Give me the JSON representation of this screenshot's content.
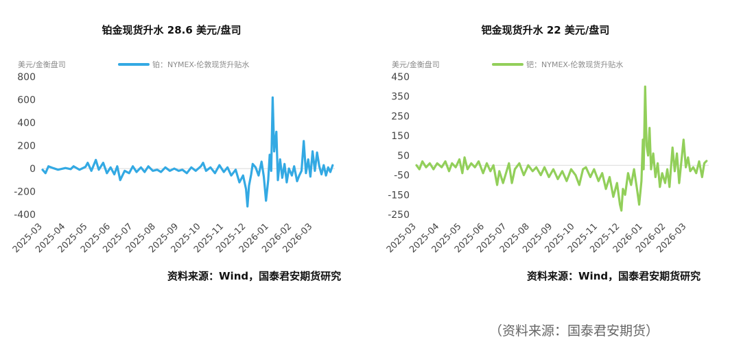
{
  "footer_source": "（资料来源：国泰君安期货）",
  "charts": [
    {
      "title": "铂金现货升水 28.6 美元/盘司",
      "unit": "美元/金衡盘司",
      "legend": "铂：NYMEX-伦敦现货升贴水",
      "source": "资料来源：Wind，国泰君安期货研究",
      "color": "#33a9e3"
    },
    {
      "title": "钯金现货升水 22 美元/盘司",
      "unit": "美元/金衡盘司",
      "legend": "钯：NYMEX-伦敦现货升贴水",
      "source": "资料来源：Wind，国泰君安期货研究",
      "color": "#92cf5a"
    }
  ],
  "chart_data": [
    {
      "type": "line",
      "title": "铂金现货升水 28.6 美元/盘司",
      "ylabel": "美元/金衡盘司",
      "ylim": [
        -400,
        800
      ],
      "yticks": [
        800,
        600,
        400,
        200,
        0,
        -200,
        -400
      ],
      "xlim": [
        "2025-03-01",
        "2026-03-31"
      ],
      "xticks": [
        "2025-03",
        "2025-04",
        "2025-05",
        "2025-06",
        "2025-07",
        "2025-08",
        "2025-09",
        "2025-10",
        "2025-11",
        "2025-12",
        "2026-01",
        "2026-02",
        "2026-03"
      ],
      "grid": false,
      "series": [
        {
          "name": "铂：NYMEX-伦敦现货升贴水",
          "points": [
            [
              "2025-03-01",
              -10
            ],
            [
              "2025-03-05",
              -40
            ],
            [
              "2025-03-09",
              20
            ],
            [
              "2025-03-15",
              5
            ],
            [
              "2025-03-22",
              -10
            ],
            [
              "2025-04-01",
              5
            ],
            [
              "2025-04-08",
              -5
            ],
            [
              "2025-04-12",
              20
            ],
            [
              "2025-04-20",
              -10
            ],
            [
              "2025-04-28",
              15
            ],
            [
              "2025-05-01",
              50
            ],
            [
              "2025-05-06",
              -20
            ],
            [
              "2025-05-12",
              75
            ],
            [
              "2025-05-16",
              -10
            ],
            [
              "2025-05-22",
              50
            ],
            [
              "2025-05-27",
              -40
            ],
            [
              "2025-06-01",
              10
            ],
            [
              "2025-06-06",
              -50
            ],
            [
              "2025-06-10",
              20
            ],
            [
              "2025-06-14",
              -100
            ],
            [
              "2025-06-20",
              -20
            ],
            [
              "2025-06-26",
              -40
            ],
            [
              "2025-07-01",
              20
            ],
            [
              "2025-07-06",
              -30
            ],
            [
              "2025-07-12",
              10
            ],
            [
              "2025-07-17",
              -30
            ],
            [
              "2025-07-22",
              20
            ],
            [
              "2025-07-28",
              -20
            ],
            [
              "2025-08-03",
              -10
            ],
            [
              "2025-08-08",
              -30
            ],
            [
              "2025-08-14",
              10
            ],
            [
              "2025-08-20",
              -20
            ],
            [
              "2025-08-26",
              0
            ],
            [
              "2025-09-01",
              -20
            ],
            [
              "2025-09-06",
              -10
            ],
            [
              "2025-09-12",
              -40
            ],
            [
              "2025-09-18",
              10
            ],
            [
              "2025-09-24",
              -20
            ],
            [
              "2025-10-01",
              20
            ],
            [
              "2025-10-04",
              50
            ],
            [
              "2025-10-08",
              -20
            ],
            [
              "2025-10-14",
              10
            ],
            [
              "2025-10-20",
              -40
            ],
            [
              "2025-10-26",
              30
            ],
            [
              "2025-11-01",
              -30
            ],
            [
              "2025-11-06",
              10
            ],
            [
              "2025-11-11",
              -60
            ],
            [
              "2025-11-17",
              -10
            ],
            [
              "2025-11-22",
              -120
            ],
            [
              "2025-11-27",
              -60
            ],
            [
              "2025-12-01",
              -180
            ],
            [
              "2025-12-03",
              -330
            ],
            [
              "2025-12-05",
              -150
            ],
            [
              "2025-12-08",
              -50
            ],
            [
              "2025-12-10",
              40
            ],
            [
              "2025-12-14",
              10
            ],
            [
              "2025-12-18",
              -60
            ],
            [
              "2025-12-22",
              60
            ],
            [
              "2025-12-25",
              -70
            ],
            [
              "2025-12-28",
              -280
            ],
            [
              "2025-12-31",
              -100
            ],
            [
              "2026-01-02",
              120
            ],
            [
              "2026-01-04",
              -20
            ],
            [
              "2026-01-06",
              620
            ],
            [
              "2026-01-08",
              150
            ],
            [
              "2026-01-11",
              320
            ],
            [
              "2026-01-13",
              -100
            ],
            [
              "2026-01-16",
              80
            ],
            [
              "2026-01-19",
              -80
            ],
            [
              "2026-01-22",
              40
            ],
            [
              "2026-01-25",
              -120
            ],
            [
              "2026-01-28",
              0
            ],
            [
              "2026-02-01",
              -60
            ],
            [
              "2026-02-04",
              20
            ],
            [
              "2026-02-08",
              -110
            ],
            [
              "2026-02-11",
              -60
            ],
            [
              "2026-02-14",
              -20
            ],
            [
              "2026-02-17",
              240
            ],
            [
              "2026-02-20",
              -40
            ],
            [
              "2026-02-23",
              80
            ],
            [
              "2026-02-26",
              -70
            ],
            [
              "2026-03-01",
              150
            ],
            [
              "2026-03-04",
              -20
            ],
            [
              "2026-03-07",
              140
            ],
            [
              "2026-03-10",
              20
            ],
            [
              "2026-03-13",
              -50
            ],
            [
              "2026-03-16",
              30
            ],
            [
              "2026-03-19",
              -60
            ],
            [
              "2026-03-22",
              10
            ],
            [
              "2026-03-25",
              -30
            ],
            [
              "2026-03-28",
              28.6
            ]
          ]
        }
      ]
    },
    {
      "type": "line",
      "title": "钯金现货升水 22 美元/盘司",
      "ylabel": "美元/金衡盘司",
      "ylim": [
        -250,
        450
      ],
      "yticks": [
        450,
        350,
        250,
        150,
        50,
        -50,
        -150,
        -250
      ],
      "xlim": [
        "2025-03-01",
        "2026-03-31"
      ],
      "xticks": [
        "2025-03",
        "2025-04",
        "2025-05",
        "2025-06",
        "2025-07",
        "2025-08",
        "2025-09",
        "2025-10",
        "2025-11",
        "2025-12",
        "2026-01",
        "2026-02",
        "2026-03"
      ],
      "grid": false,
      "series": [
        {
          "name": "钯：NYMEX-伦敦现货升贴水",
          "points": [
            [
              "2025-03-01",
              0
            ],
            [
              "2025-03-05",
              -20
            ],
            [
              "2025-03-09",
              20
            ],
            [
              "2025-03-14",
              -10
            ],
            [
              "2025-03-19",
              10
            ],
            [
              "2025-03-24",
              -20
            ],
            [
              "2025-03-29",
              10
            ],
            [
              "2025-04-04",
              -10
            ],
            [
              "2025-04-09",
              20
            ],
            [
              "2025-04-14",
              -30
            ],
            [
              "2025-04-18",
              10
            ],
            [
              "2025-04-23",
              -10
            ],
            [
              "2025-04-28",
              30
            ],
            [
              "2025-05-02",
              -40
            ],
            [
              "2025-05-05",
              40
            ],
            [
              "2025-05-09",
              -20
            ],
            [
              "2025-05-14",
              10
            ],
            [
              "2025-05-19",
              -10
            ],
            [
              "2025-05-24",
              20
            ],
            [
              "2025-05-30",
              -40
            ],
            [
              "2025-06-04",
              10
            ],
            [
              "2025-06-09",
              -30
            ],
            [
              "2025-06-13",
              0
            ],
            [
              "2025-06-18",
              -100
            ],
            [
              "2025-06-21",
              -30
            ],
            [
              "2025-06-26",
              -90
            ],
            [
              "2025-06-30",
              -40
            ],
            [
              "2025-07-04",
              10
            ],
            [
              "2025-07-08",
              -90
            ],
            [
              "2025-07-12",
              -20
            ],
            [
              "2025-07-18",
              10
            ],
            [
              "2025-07-24",
              -50
            ],
            [
              "2025-07-30",
              0
            ],
            [
              "2025-08-05",
              -30
            ],
            [
              "2025-08-10",
              -10
            ],
            [
              "2025-08-16",
              -50
            ],
            [
              "2025-08-21",
              -10
            ],
            [
              "2025-08-27",
              -60
            ],
            [
              "2025-09-02",
              -20
            ],
            [
              "2025-09-08",
              -70
            ],
            [
              "2025-09-14",
              -30
            ],
            [
              "2025-09-20",
              -80
            ],
            [
              "2025-09-26",
              -20
            ],
            [
              "2025-10-02",
              -50
            ],
            [
              "2025-10-07",
              -100
            ],
            [
              "2025-10-12",
              -20
            ],
            [
              "2025-10-16",
              -10
            ],
            [
              "2025-10-22",
              -60
            ],
            [
              "2025-10-27",
              -20
            ],
            [
              "2025-11-02",
              -80
            ],
            [
              "2025-11-07",
              -40
            ],
            [
              "2025-11-12",
              -120
            ],
            [
              "2025-11-17",
              -60
            ],
            [
              "2025-11-22",
              -160
            ],
            [
              "2025-11-27",
              -90
            ],
            [
              "2025-12-01",
              -200
            ],
            [
              "2025-12-03",
              -230
            ],
            [
              "2025-12-05",
              -120
            ],
            [
              "2025-12-08",
              -150
            ],
            [
              "2025-12-12",
              -40
            ],
            [
              "2025-12-16",
              -100
            ],
            [
              "2025-12-20",
              -20
            ],
            [
              "2025-12-24",
              -120
            ],
            [
              "2025-12-27",
              -200
            ],
            [
              "2025-12-30",
              -80
            ],
            [
              "2026-01-01",
              130
            ],
            [
              "2026-01-02",
              -20
            ],
            [
              "2026-01-04",
              400
            ],
            [
              "2026-01-06",
              100
            ],
            [
              "2026-01-08",
              50
            ],
            [
              "2026-01-10",
              190
            ],
            [
              "2026-01-12",
              -20
            ],
            [
              "2026-01-15",
              60
            ],
            [
              "2026-01-18",
              -60
            ],
            [
              "2026-01-21",
              10
            ],
            [
              "2026-01-24",
              -110
            ],
            [
              "2026-01-27",
              -40
            ],
            [
              "2026-01-31",
              -90
            ],
            [
              "2026-02-03",
              -20
            ],
            [
              "2026-02-06",
              -110
            ],
            [
              "2026-02-10",
              90
            ],
            [
              "2026-02-13",
              -30
            ],
            [
              "2026-02-16",
              60
            ],
            [
              "2026-02-19",
              -90
            ],
            [
              "2026-02-22",
              20
            ],
            [
              "2026-02-25",
              130
            ],
            [
              "2026-02-28",
              -10
            ],
            [
              "2026-03-03",
              40
            ],
            [
              "2026-03-06",
              -30
            ],
            [
              "2026-03-10",
              -10
            ],
            [
              "2026-03-14",
              -40
            ],
            [
              "2026-03-18",
              20
            ],
            [
              "2026-03-22",
              -60
            ],
            [
              "2026-03-25",
              10
            ],
            [
              "2026-03-28",
              22
            ]
          ]
        }
      ]
    }
  ]
}
